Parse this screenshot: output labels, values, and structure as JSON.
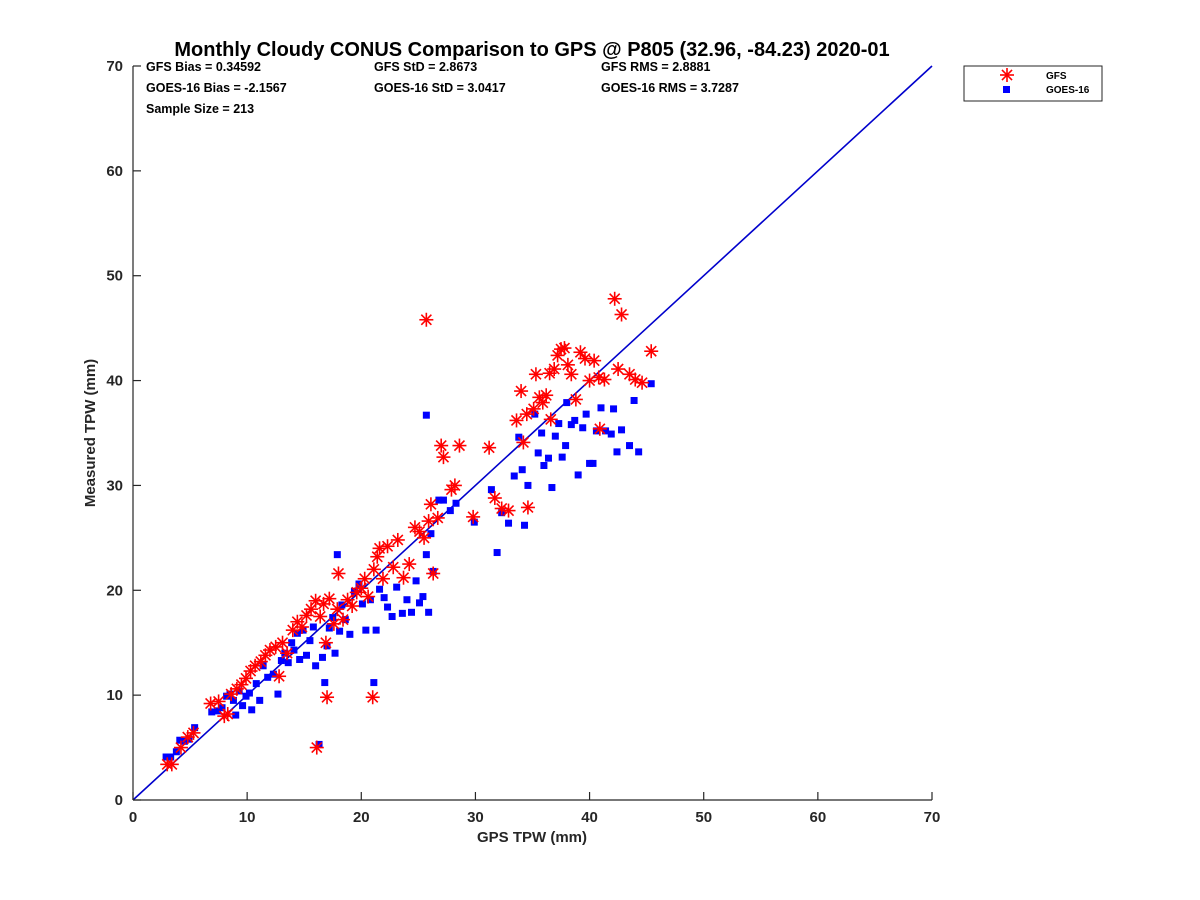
{
  "chart_data": {
    "type": "scatter",
    "title": "Monthly Cloudy CONUS Comparison to GPS @ P805 (32.96, -84.23) 2020-01",
    "xlabel": "GPS TPW (mm)",
    "ylabel": "Measured TPW (mm)",
    "xlim": [
      0,
      70
    ],
    "ylim": [
      0,
      70
    ],
    "xticks": [
      "0",
      "10",
      "20",
      "30",
      "40",
      "50",
      "60",
      "70"
    ],
    "yticks": [
      "0",
      "10",
      "20",
      "30",
      "40",
      "50",
      "60",
      "70"
    ],
    "grid": false,
    "legend_position": "top-right-outside",
    "stats": [
      "GFS Bias = 0.34592",
      "GFS StD = 2.8673",
      "GFS RMS = 2.8881",
      "GOES-16 Bias = -2.1567",
      "GOES-16 StD = 3.0417",
      "GOES-16 RMS = 3.7287",
      "Sample Size = 213"
    ],
    "reference_line": {
      "name": "1:1 line",
      "from": [
        0,
        0
      ],
      "to": [
        70,
        70
      ],
      "color": "#0000cc"
    },
    "series": [
      {
        "name": "GFS",
        "marker": "asterisk",
        "color": "#ff0000",
        "points": [
          [
            3.0,
            3.4
          ],
          [
            3.4,
            3.4
          ],
          [
            4.2,
            5.0
          ],
          [
            4.8,
            6.0
          ],
          [
            5.3,
            6.4
          ],
          [
            6.8,
            9.2
          ],
          [
            7.5,
            9.4
          ],
          [
            8.0,
            8.0
          ],
          [
            8.3,
            8.2
          ],
          [
            8.6,
            10.1
          ],
          [
            9.1,
            10.6
          ],
          [
            9.5,
            11.0
          ],
          [
            9.9,
            11.6
          ],
          [
            10.3,
            12.3
          ],
          [
            10.7,
            12.8
          ],
          [
            11.2,
            13.2
          ],
          [
            11.6,
            13.8
          ],
          [
            12.0,
            14.3
          ],
          [
            12.5,
            14.6
          ],
          [
            12.8,
            11.8
          ],
          [
            13.1,
            15.0
          ],
          [
            13.5,
            14.0
          ],
          [
            14.0,
            16.2
          ],
          [
            14.4,
            17.0
          ],
          [
            14.8,
            16.5
          ],
          [
            15.2,
            17.6
          ],
          [
            15.6,
            18.2
          ],
          [
            16.0,
            19.0
          ],
          [
            16.1,
            5.0
          ],
          [
            16.4,
            17.5
          ],
          [
            16.7,
            18.7
          ],
          [
            16.9,
            15.0
          ],
          [
            17.0,
            9.8
          ],
          [
            17.2,
            19.2
          ],
          [
            17.6,
            16.8
          ],
          [
            17.9,
            18.2
          ],
          [
            18.0,
            21.6
          ],
          [
            18.4,
            17.2
          ],
          [
            18.8,
            19.1
          ],
          [
            19.2,
            18.5
          ],
          [
            19.6,
            19.8
          ],
          [
            20.0,
            20.2
          ],
          [
            20.3,
            21.1
          ],
          [
            20.6,
            19.4
          ],
          [
            21.0,
            9.8
          ],
          [
            21.1,
            22.0
          ],
          [
            21.4,
            23.2
          ],
          [
            21.6,
            24.0
          ],
          [
            21.9,
            21.1
          ],
          [
            22.3,
            24.2
          ],
          [
            22.8,
            22.2
          ],
          [
            23.2,
            24.8
          ],
          [
            23.7,
            21.2
          ],
          [
            24.2,
            22.5
          ],
          [
            24.7,
            26.0
          ],
          [
            25.1,
            25.6
          ],
          [
            25.5,
            25.0
          ],
          [
            25.7,
            45.8
          ],
          [
            25.9,
            26.6
          ],
          [
            26.1,
            28.2
          ],
          [
            26.3,
            21.6
          ],
          [
            26.7,
            26.9
          ],
          [
            27.0,
            33.8
          ],
          [
            27.2,
            32.7
          ],
          [
            27.9,
            29.6
          ],
          [
            28.2,
            30.0
          ],
          [
            28.6,
            33.8
          ],
          [
            29.8,
            27.0
          ],
          [
            31.2,
            33.6
          ],
          [
            31.7,
            28.8
          ],
          [
            32.3,
            27.8
          ],
          [
            32.9,
            27.6
          ],
          [
            33.6,
            36.2
          ],
          [
            34.0,
            39.0
          ],
          [
            34.2,
            34.1
          ],
          [
            34.5,
            36.8
          ],
          [
            34.6,
            27.9
          ],
          [
            35.1,
            37.3
          ],
          [
            35.3,
            40.6
          ],
          [
            35.6,
            38.4
          ],
          [
            35.9,
            37.9
          ],
          [
            36.2,
            38.6
          ],
          [
            36.5,
            40.7
          ],
          [
            36.6,
            36.3
          ],
          [
            36.9,
            41.1
          ],
          [
            37.2,
            42.4
          ],
          [
            37.5,
            43.0
          ],
          [
            37.8,
            43.1
          ],
          [
            38.1,
            41.5
          ],
          [
            38.4,
            40.6
          ],
          [
            38.8,
            38.2
          ],
          [
            39.2,
            42.7
          ],
          [
            39.6,
            42.1
          ],
          [
            40.0,
            40.0
          ],
          [
            40.4,
            41.9
          ],
          [
            40.8,
            40.3
          ],
          [
            40.9,
            35.4
          ],
          [
            41.3,
            40.1
          ],
          [
            42.2,
            47.8
          ],
          [
            42.5,
            41.1
          ],
          [
            42.8,
            46.3
          ],
          [
            43.5,
            40.6
          ],
          [
            44.0,
            40.1
          ],
          [
            44.6,
            39.8
          ],
          [
            45.4,
            42.8
          ]
        ]
      },
      {
        "name": "GOES-16",
        "marker": "square",
        "color": "#0000ff",
        "points": [
          [
            2.9,
            4.1
          ],
          [
            3.3,
            4.1
          ],
          [
            3.8,
            4.6
          ],
          [
            4.1,
            5.7
          ],
          [
            4.5,
            5.6
          ],
          [
            4.9,
            5.8
          ],
          [
            5.4,
            6.9
          ],
          [
            6.9,
            8.4
          ],
          [
            7.4,
            8.5
          ],
          [
            7.8,
            8.8
          ],
          [
            8.2,
            9.9
          ],
          [
            8.5,
            10.1
          ],
          [
            8.8,
            9.5
          ],
          [
            9.0,
            8.1
          ],
          [
            9.3,
            10.4
          ],
          [
            9.6,
            9.0
          ],
          [
            9.9,
            9.9
          ],
          [
            10.2,
            10.2
          ],
          [
            10.4,
            8.6
          ],
          [
            10.8,
            11.1
          ],
          [
            11.1,
            9.5
          ],
          [
            11.4,
            12.8
          ],
          [
            11.8,
            11.7
          ],
          [
            12.3,
            12.0
          ],
          [
            12.7,
            10.1
          ],
          [
            13.0,
            13.3
          ],
          [
            13.3,
            14.0
          ],
          [
            13.6,
            13.1
          ],
          [
            13.9,
            15.0
          ],
          [
            14.1,
            14.3
          ],
          [
            14.4,
            15.9
          ],
          [
            14.6,
            13.4
          ],
          [
            14.9,
            16.2
          ],
          [
            15.2,
            13.8
          ],
          [
            15.5,
            15.2
          ],
          [
            15.8,
            16.5
          ],
          [
            16.0,
            12.8
          ],
          [
            16.3,
            5.3
          ],
          [
            16.6,
            13.6
          ],
          [
            16.8,
            11.2
          ],
          [
            17.0,
            14.7
          ],
          [
            17.2,
            16.4
          ],
          [
            17.5,
            17.4
          ],
          [
            17.7,
            14.0
          ],
          [
            17.9,
            23.4
          ],
          [
            18.1,
            16.1
          ],
          [
            18.3,
            18.6
          ],
          [
            18.6,
            17.2
          ],
          [
            19.0,
            15.8
          ],
          [
            19.4,
            19.9
          ],
          [
            19.8,
            20.6
          ],
          [
            20.1,
            18.7
          ],
          [
            20.4,
            16.2
          ],
          [
            20.8,
            19.1
          ],
          [
            21.1,
            11.2
          ],
          [
            21.3,
            16.2
          ],
          [
            21.6,
            20.1
          ],
          [
            22.0,
            19.3
          ],
          [
            22.3,
            18.4
          ],
          [
            22.7,
            17.5
          ],
          [
            23.1,
            20.3
          ],
          [
            23.6,
            17.8
          ],
          [
            24.0,
            19.1
          ],
          [
            24.4,
            17.9
          ],
          [
            24.8,
            20.9
          ],
          [
            25.1,
            18.8
          ],
          [
            25.4,
            19.4
          ],
          [
            25.7,
            23.4
          ],
          [
            25.7,
            36.7
          ],
          [
            25.9,
            17.9
          ],
          [
            26.1,
            25.4
          ],
          [
            26.3,
            21.8
          ],
          [
            26.8,
            28.6
          ],
          [
            27.2,
            28.6
          ],
          [
            27.8,
            27.6
          ],
          [
            28.3,
            28.3
          ],
          [
            29.9,
            26.5
          ],
          [
            31.4,
            29.6
          ],
          [
            31.9,
            23.6
          ],
          [
            32.3,
            27.4
          ],
          [
            32.9,
            26.4
          ],
          [
            33.4,
            30.9
          ],
          [
            33.8,
            34.6
          ],
          [
            34.1,
            31.5
          ],
          [
            34.3,
            26.2
          ],
          [
            34.6,
            30.0
          ],
          [
            35.2,
            36.8
          ],
          [
            35.5,
            33.1
          ],
          [
            35.8,
            35.0
          ],
          [
            36.0,
            31.9
          ],
          [
            36.4,
            32.6
          ],
          [
            36.7,
            29.8
          ],
          [
            37.0,
            34.7
          ],
          [
            37.3,
            35.9
          ],
          [
            37.6,
            32.7
          ],
          [
            37.9,
            33.8
          ],
          [
            38.0,
            37.9
          ],
          [
            38.4,
            35.8
          ],
          [
            38.7,
            36.2
          ],
          [
            39.0,
            31.0
          ],
          [
            39.4,
            35.5
          ],
          [
            39.7,
            36.8
          ],
          [
            40.0,
            32.1
          ],
          [
            40.3,
            32.1
          ],
          [
            40.6,
            35.2
          ],
          [
            41.0,
            37.4
          ],
          [
            41.4,
            35.2
          ],
          [
            41.9,
            34.9
          ],
          [
            42.1,
            37.3
          ],
          [
            42.4,
            33.2
          ],
          [
            42.8,
            35.3
          ],
          [
            43.5,
            33.8
          ],
          [
            43.9,
            38.1
          ],
          [
            44.3,
            33.2
          ],
          [
            45.4,
            39.7
          ]
        ]
      }
    ]
  }
}
